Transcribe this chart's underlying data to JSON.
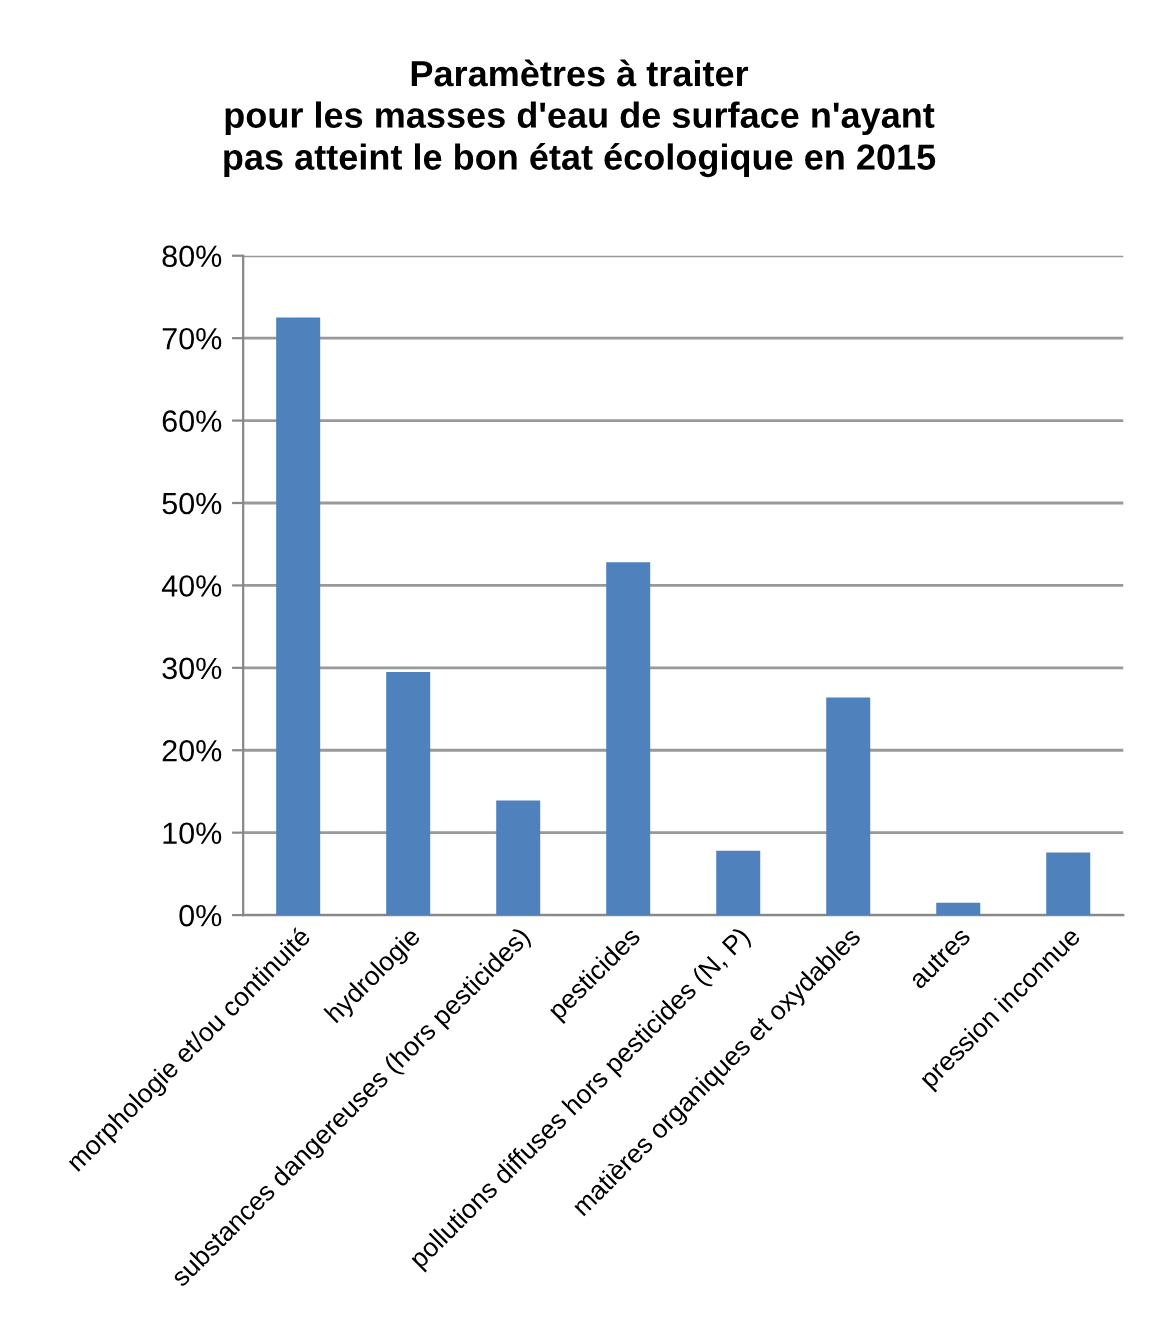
{
  "chart_data": {
    "type": "bar",
    "title": "Paramètres à traiter\npour les masses d'eau de surface n'ayant\npas atteint le bon état écologique en 2015",
    "categories": [
      "morphologie et/ou continuité",
      "hydrologie",
      "substances dangereuses (hors pesticides)",
      "pesticides",
      "pollutions diffuses hors pesticides (N, P)",
      "matières organiques et oxydables",
      "autres",
      "pression inconnue"
    ],
    "values": [
      72.5,
      29.5,
      13.9,
      42.8,
      7.8,
      26.4,
      1.5,
      7.6
    ],
    "color": "#4f81bd",
    "ylim": [
      0,
      80
    ],
    "yticks": [
      {
        "value": 0,
        "label": "0%"
      },
      {
        "value": 10,
        "label": "10%"
      },
      {
        "value": 20,
        "label": "20%"
      },
      {
        "value": 30,
        "label": "30%"
      },
      {
        "value": 40,
        "label": "40%"
      },
      {
        "value": 50,
        "label": "50%"
      },
      {
        "value": 60,
        "label": "60%"
      },
      {
        "value": 70,
        "label": "70%"
      },
      {
        "value": 80,
        "label": "80%"
      }
    ],
    "grid": "y",
    "legend": false
  }
}
